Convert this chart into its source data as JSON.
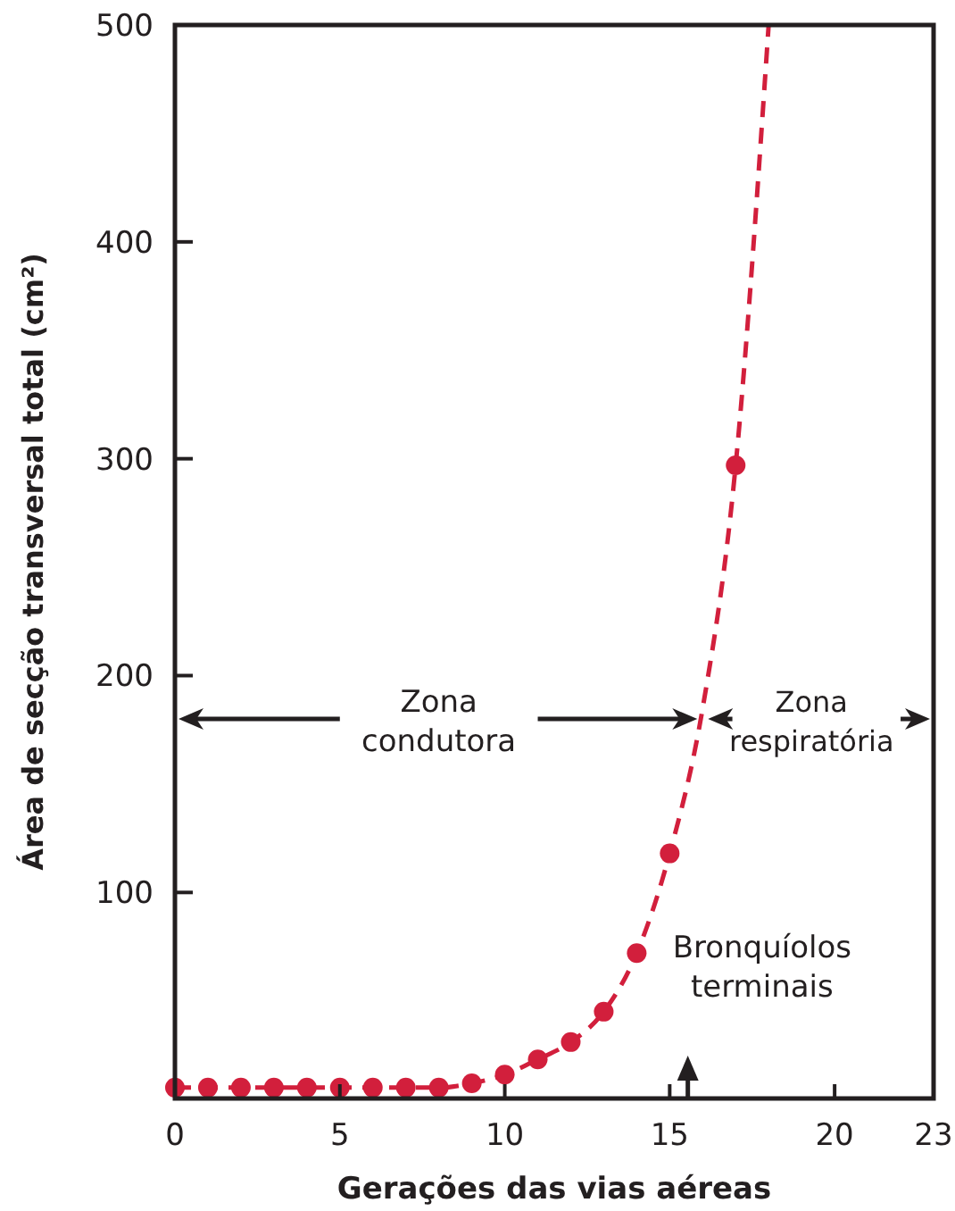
{
  "chart_data": {
    "type": "line",
    "xlabel": "Gerações das vias aéreas",
    "ylabel": "Área de secção transversal total (cm²)",
    "xlim": [
      0,
      23
    ],
    "xticks": [
      0,
      5,
      10,
      15,
      20,
      23
    ],
    "ylim": [
      5,
      500
    ],
    "yticks": [
      100,
      200,
      300,
      400,
      500
    ],
    "grid": false,
    "series": [
      {
        "line_style": "dashed",
        "marker": "none",
        "color": "#d21f3c",
        "x": [
          0,
          1,
          2,
          3,
          4,
          5,
          6,
          7,
          8,
          9,
          10,
          11,
          12,
          13,
          14,
          15,
          16,
          17,
          18
        ],
        "values": [
          10,
          10,
          10,
          10,
          10,
          10,
          10,
          10,
          10,
          12,
          16,
          23,
          31,
          45,
          72,
          118,
          185,
          297,
          500
        ]
      },
      {
        "type": "scatter",
        "marker": "circle",
        "color": "#d21f3c",
        "x": [
          0,
          1,
          2,
          3,
          4,
          5,
          6,
          7,
          8,
          9,
          10,
          11,
          12,
          13,
          14,
          15,
          17
        ],
        "values": [
          10,
          10,
          10,
          10,
          10,
          10,
          10,
          10,
          10,
          12,
          16,
          23,
          31,
          45,
          72,
          118,
          297
        ]
      }
    ],
    "annotations": [
      "Zona condutora",
      "Zona respiratória",
      "Bronquíolos terminais"
    ]
  }
}
